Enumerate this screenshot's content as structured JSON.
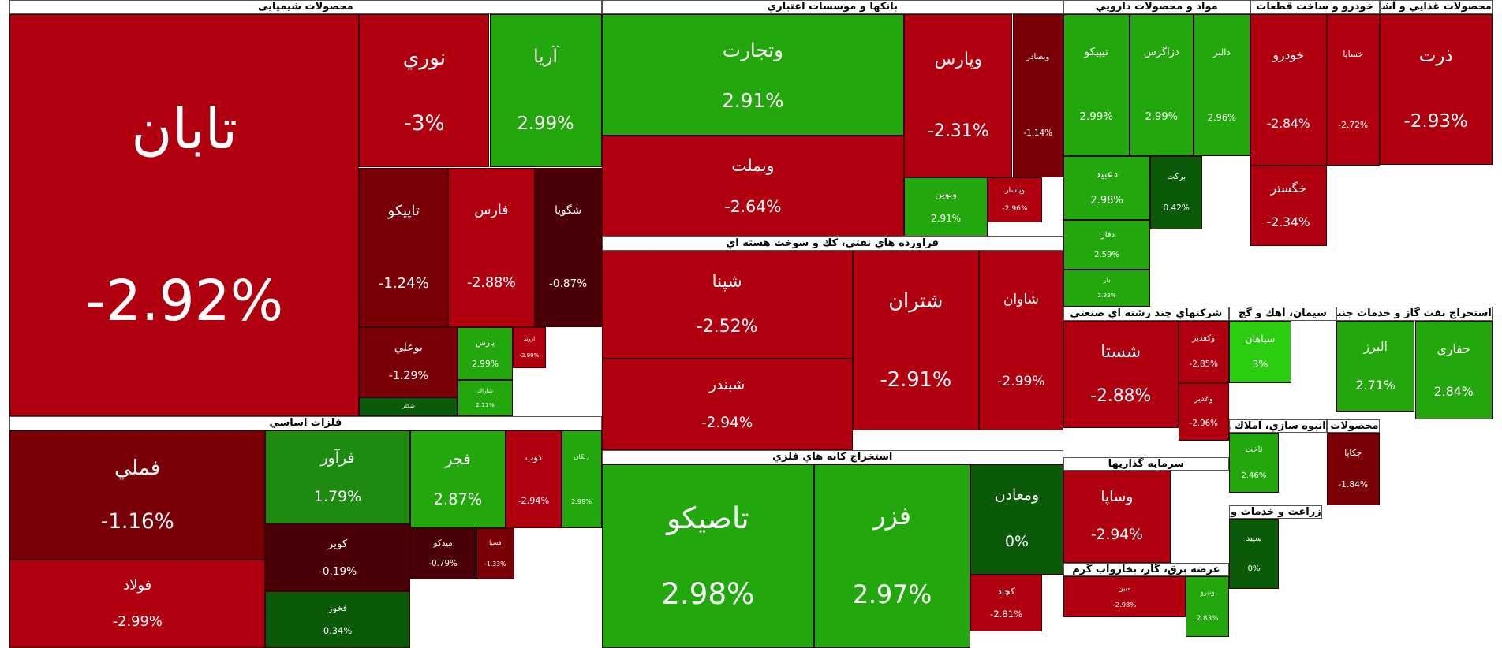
{
  "sectors": [
    {
      "title": "محصولات شیمیایی",
      "tiles": [
        {
          "name": "تابان",
          "change": "-2.92%",
          "color": "#b00010"
        },
        {
          "name": "نوري",
          "change": "-3%",
          "color": "#b00010"
        },
        {
          "name": "آريا",
          "change": "2.99%",
          "color": "#22a80c"
        },
        {
          "name": "تاپيكو",
          "change": "-1.24%",
          "color": "#7a0008"
        },
        {
          "name": "فارس",
          "change": "-2.88%",
          "color": "#b00010"
        },
        {
          "name": "شگويا",
          "change": "-0.87%",
          "color": "#4a0006"
        },
        {
          "name": "بوعلي",
          "change": "-1.29%",
          "color": "#7a0008"
        },
        {
          "name": "پارس",
          "change": "2.99%",
          "color": "#22a80c"
        },
        {
          "name": "شاراك",
          "change": "2.11%",
          "color": "#22a80c"
        },
        {
          "name": "شكلر",
          "color": "#0a5a0a"
        },
        {
          "name": "اروند",
          "change": "-2.99%",
          "color": "#b00010"
        }
      ]
    },
    {
      "title": "فلزات اساسي",
      "tiles": [
        {
          "name": "فملي",
          "change": "-1.16%",
          "color": "#7a0008"
        },
        {
          "name": "فولاد",
          "change": "-2.99%",
          "color": "#b00010"
        },
        {
          "name": "فرآور",
          "change": "1.79%",
          "color": "#1e8a10"
        },
        {
          "name": "كوير",
          "change": "-0.19%",
          "color": "#4a0006"
        },
        {
          "name": "فخوز",
          "change": "0.34%",
          "color": "#0a5a0a"
        },
        {
          "name": "فجر",
          "change": "2.87%",
          "color": "#22a80c"
        },
        {
          "name": "ذوب",
          "change": "-2.94%",
          "color": "#b00010"
        },
        {
          "name": "رنكان",
          "change": "2.99%",
          "color": "#22a80c"
        },
        {
          "name": "ميدكو",
          "change": "-0.79%",
          "color": "#4a0006"
        },
        {
          "name": "فسپا",
          "change": "-1.33%",
          "color": "#7a0008"
        }
      ]
    },
    {
      "title": "بانكها و موسسات اعتباري",
      "tiles": [
        {
          "name": "وتجارت",
          "change": "2.91%",
          "color": "#22a80c"
        },
        {
          "name": "وبملت",
          "change": "-2.64%",
          "color": "#b00010"
        },
        {
          "name": "وپارس",
          "change": "-2.31%",
          "color": "#b00010"
        },
        {
          "name": "وبصادر",
          "change": "-1.14%",
          "color": "#7a0008"
        },
        {
          "name": "ونوين",
          "change": "2.91%",
          "color": "#22a80c"
        },
        {
          "name": "وپاسار",
          "change": "-2.96%",
          "color": "#b00010"
        }
      ]
    },
    {
      "title": "فراورده هاي نفتي، كك و سوخت هسته اي",
      "tiles": [
        {
          "name": "شپنا",
          "change": "-2.52%",
          "color": "#b00010"
        },
        {
          "name": "شبندر",
          "change": "-2.94%",
          "color": "#b00010"
        },
        {
          "name": "شتران",
          "change": "-2.91%",
          "color": "#b00010"
        },
        {
          "name": "شاوان",
          "change": "-2.99%",
          "color": "#b00010"
        }
      ]
    },
    {
      "title": "استخراج كانه هاي فلزي",
      "tiles": [
        {
          "name": "تاصيكو",
          "change": "2.98%",
          "color": "#22a80c"
        },
        {
          "name": "فزر",
          "change": "2.97%",
          "color": "#22a80c"
        },
        {
          "name": "ومعادن",
          "change": "0%",
          "color": "#0a5a0a"
        },
        {
          "name": "كچاد",
          "change": "-2.81%",
          "color": "#b00010"
        }
      ]
    },
    {
      "title": "مواد و محصولات دارويي",
      "tiles": [
        {
          "name": "تيپيكو",
          "change": "2.99%",
          "color": "#22a80c"
        },
        {
          "name": "دزاگرس",
          "change": "2.99%",
          "color": "#22a80c"
        },
        {
          "name": "دالبر",
          "change": "2.96%",
          "color": "#22a80c"
        },
        {
          "name": "دعبيد",
          "change": "2.98%",
          "color": "#22a80c"
        },
        {
          "name": "بركت",
          "change": "0.42%",
          "color": "#0a5a0a"
        },
        {
          "name": "دفارا",
          "change": "2.59%",
          "color": "#22a80c"
        },
        {
          "name": "دار",
          "change": "2.93%",
          "color": "#22a80c"
        }
      ]
    },
    {
      "title": "خودرو و ساخت قطعات",
      "tiles": [
        {
          "name": "خودرو",
          "change": "-2.84%",
          "color": "#b00010"
        },
        {
          "name": "خساپا",
          "change": "-2.72%",
          "color": "#b00010"
        },
        {
          "name": "خگستر",
          "change": "-2.34%",
          "color": "#b00010"
        }
      ]
    },
    {
      "title": "محصولات غذايي و آشاميدني به جز قند و شكر",
      "tiles": [
        {
          "name": "ذرت",
          "change": "-2.93%",
          "color": "#b00010"
        }
      ]
    },
    {
      "title": "شركتهاي چند رشته اي صنعتي",
      "tiles": [
        {
          "name": "شستا",
          "change": "-2.88%",
          "color": "#b00010"
        },
        {
          "name": "وكغدير",
          "change": "-2.85%",
          "color": "#b00010"
        },
        {
          "name": "وغدير",
          "change": "-2.96%",
          "color": "#b00010"
        }
      ]
    },
    {
      "title": "سرمايه گذاريها",
      "tiles": [
        {
          "name": "وساپا",
          "change": "-2.94%",
          "color": "#b00010"
        }
      ]
    },
    {
      "title": "عرضه برق، گاز، بخاروآب گرم",
      "tiles": [
        {
          "name": "مبين",
          "change": "-2.98%",
          "color": "#b00010"
        },
        {
          "name": "ونيرو",
          "change": "2.83%",
          "color": "#22a80c"
        }
      ]
    },
    {
      "title": "سيمان، آهك و گچ",
      "tiles": [
        {
          "name": "سپاهان",
          "change": "3%",
          "color": "#2ccc10"
        }
      ]
    },
    {
      "title": "استخراج نفت گاز و خدمات جنبي جز اكتشاف",
      "tiles": [
        {
          "name": "البرز",
          "change": "2.71%",
          "color": "#22a80c"
        },
        {
          "name": "حفاري",
          "change": "2.84%",
          "color": "#22a80c"
        }
      ]
    },
    {
      "title": "انبوه سازي، املاك و مستغلات",
      "tiles": [
        {
          "name": "ثاخت",
          "change": "2.46%",
          "color": "#22a80c"
        }
      ]
    },
    {
      "title": "محصولات كاغذي",
      "tiles": [
        {
          "name": "چكاپا",
          "change": "-1.84%",
          "color": "#7a0008"
        }
      ]
    },
    {
      "title": "زراعت و خدمات وابسته",
      "tiles": [
        {
          "name": "سپيد",
          "change": "0%",
          "color": "#0a5a0a"
        }
      ]
    }
  ]
}
